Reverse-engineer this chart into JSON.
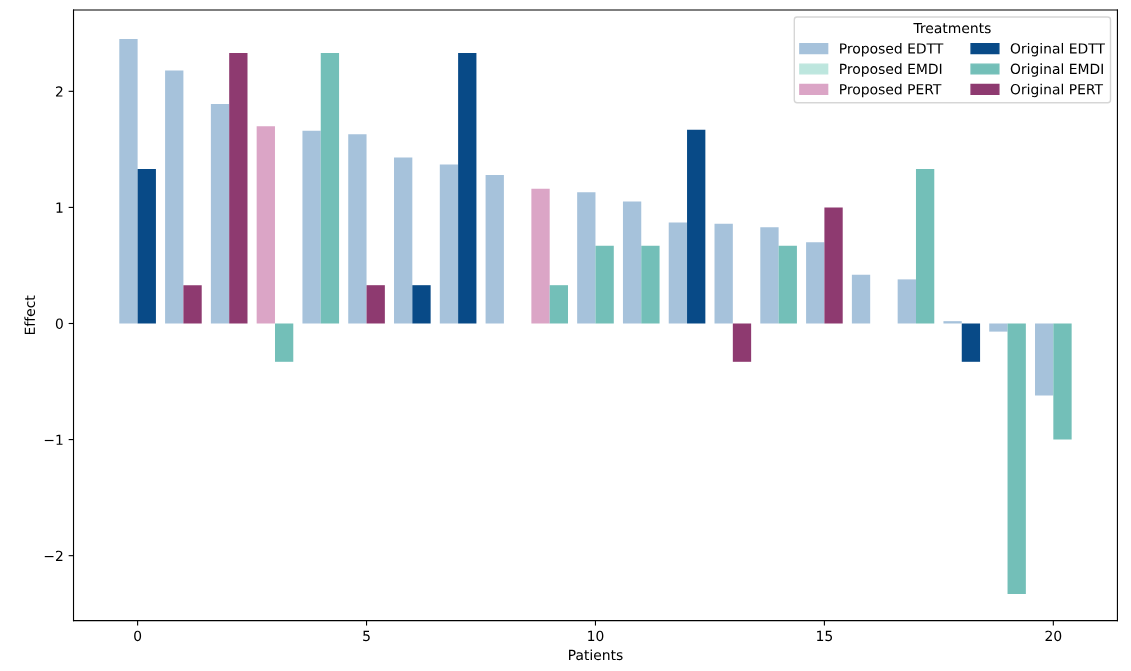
{
  "chart_data": {
    "type": "bar",
    "xlabel": "Patients",
    "ylabel": "Effect",
    "legend_title": "Treatments",
    "legend": "top right",
    "grid": false,
    "xlim": [
      -1.4,
      21.4
    ],
    "xticks": [
      0,
      5,
      10,
      15,
      20
    ],
    "ylim": [
      -2.56,
      2.7
    ],
    "yticks": [
      {
        "value": -2,
        "label": "−2"
      },
      {
        "value": -1,
        "label": "−1"
      },
      0,
      1,
      2
    ],
    "series": [
      {
        "name": "Proposed EDTT",
        "color": "#a6c2db",
        "x": [
          -0.2,
          0.8,
          1.8,
          3.8,
          4.8,
          5.8,
          6.8,
          7.8,
          9.8,
          10.8,
          11.8,
          12.8,
          13.8,
          14.8,
          15.8,
          16.8,
          17.8,
          18.8,
          19.8
        ],
        "values": [
          2.45,
          2.18,
          1.89,
          1.66,
          1.63,
          1.43,
          1.37,
          1.28,
          1.13,
          1.05,
          0.87,
          0.86,
          0.83,
          0.7,
          0.42,
          0.38,
          0.02,
          -0.07,
          -0.62
        ]
      },
      {
        "name": "Proposed EMDI",
        "color": "#bde6de"
      },
      {
        "name": "Proposed PERT",
        "color": "#dba5c6",
        "x": [
          2.8,
          8.8
        ],
        "values": [
          1.7,
          1.16
        ]
      },
      {
        "name": "Original EDTT",
        "color": "#084a87",
        "x": [
          0.2,
          6.2,
          7.2,
          12.2,
          18.2
        ],
        "values": [
          1.33,
          0.33,
          2.33,
          1.67,
          -0.33
        ]
      },
      {
        "name": "Original EMDI",
        "color": "#73bfb8",
        "x": [
          3.2,
          4.2,
          9.2,
          10.2,
          11.2,
          14.2,
          17.2,
          19.2,
          20.2
        ],
        "values": [
          -0.33,
          2.33,
          0.33,
          0.67,
          0.67,
          0.67,
          1.33,
          -2.33,
          -1.0
        ]
      },
      {
        "name": "Original PERT",
        "color": "#8e3a70",
        "x": [
          1.2,
          2.2,
          5.2,
          13.2,
          15.2
        ],
        "values": [
          0.33,
          2.33,
          0.33,
          -0.33,
          1.0
        ]
      }
    ]
  }
}
